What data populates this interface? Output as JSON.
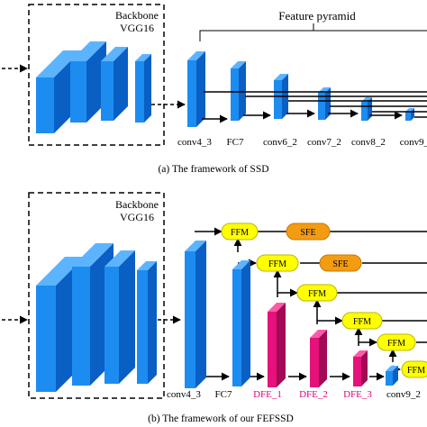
{
  "colors": {
    "block_front": "#1d8cf0",
    "block_side": "#0a5fc4",
    "block_top": "#5cb4ff",
    "dfe_front": "#e6117a",
    "dfe_side": "#a30a55",
    "dfe_top": "#ff5aa8",
    "ffm_fill": "#ffff00",
    "ffm_stroke": "#b8b800",
    "sfe_fill": "#f39c12",
    "sfe_stroke": "#c47a05",
    "dfe_label": "#e0007a",
    "line": "#000000"
  },
  "panel_a": {
    "backbone_title": "Backbone",
    "backbone_subtitle": "VGG16",
    "pyramid_label": "Feature pyramid",
    "layers": [
      "conv4_3",
      "FC7",
      "conv6_2",
      "conv7_2",
      "conv8_2",
      "conv9_"
    ],
    "caption": "(a)  The framework of  SSD"
  },
  "panel_b": {
    "backbone_title": "Backbone",
    "backbone_subtitle": "VGG16",
    "ffm_label": "FFM",
    "sfe_label": "SFE",
    "layers": [
      "conv4_3",
      "FC7",
      "DFE_1",
      "DFE_2",
      "DFE_3",
      "conv9_2"
    ],
    "caption": "(b)  The framework of  our FEFSSD"
  }
}
